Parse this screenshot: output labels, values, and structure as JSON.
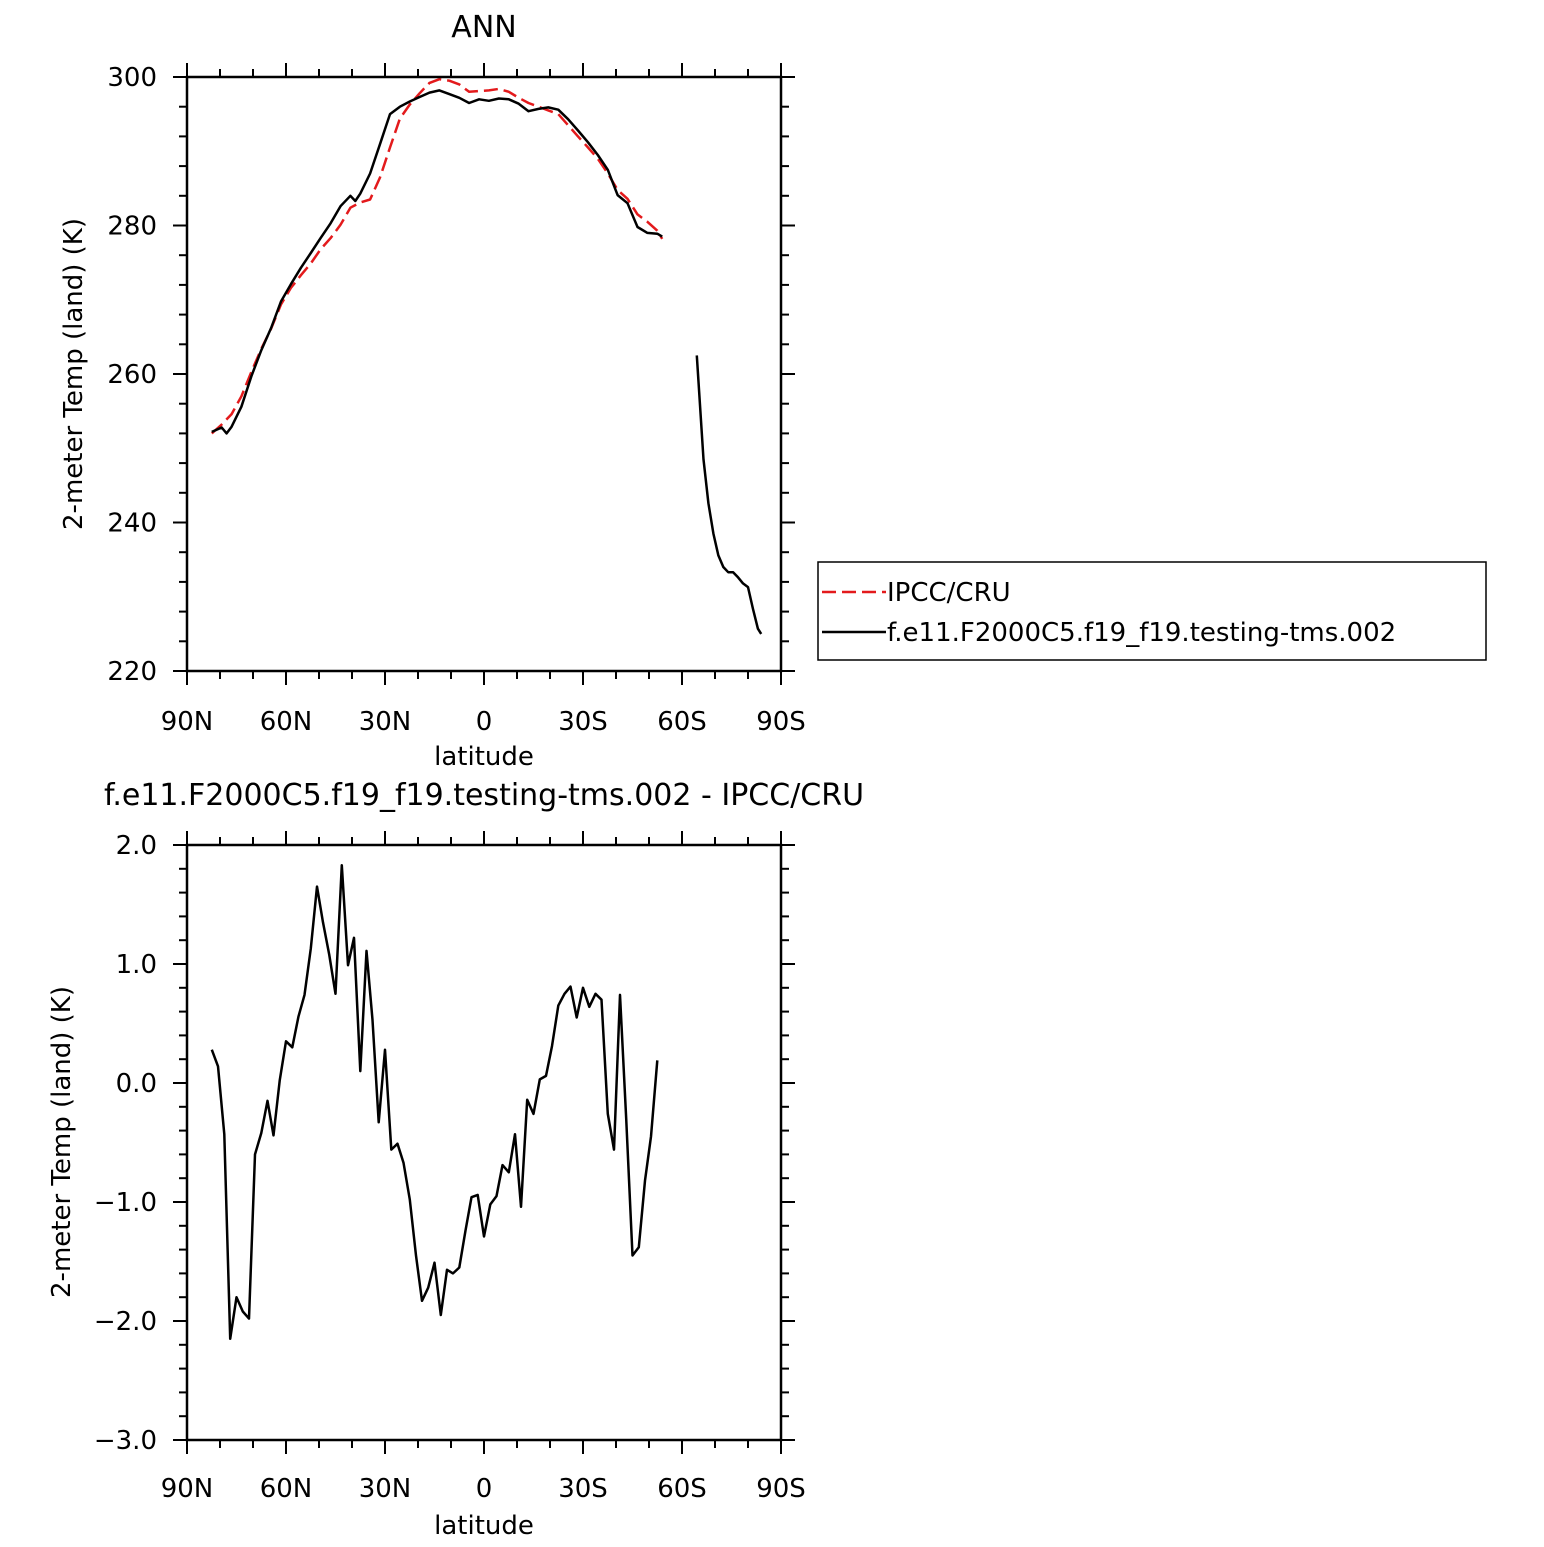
{
  "chart_data": [
    {
      "type": "line",
      "title": "ANN",
      "xlabel": "latitude",
      "ylabel": "2-meter Temp (land) (K)",
      "xlim": [
        90,
        -90
      ],
      "ylim": [
        220,
        300
      ],
      "xtick_values": [
        90,
        60,
        30,
        0,
        -30,
        -60,
        -90
      ],
      "xtick_labels": [
        "90N",
        "60N",
        "30N",
        "0",
        "30S",
        "60S",
        "90S"
      ],
      "ytick_values": [
        220,
        240,
        260,
        280,
        300
      ],
      "ytick_labels": [
        "220",
        "240",
        "260",
        "280",
        "300"
      ],
      "legend_position": "right",
      "series": [
        {
          "name": "IPCC/CRU",
          "color": "#e31a1c",
          "dash": "dashed",
          "segments": [
            [
              [
                82.5,
                252.0
              ],
              [
                79.5,
                253.2
              ],
              [
                76.5,
                254.6
              ],
              [
                73.5,
                257.0
              ],
              [
                70.5,
                260.3
              ],
              [
                67.5,
                263.4
              ],
              [
                64.5,
                266.1
              ],
              [
                61.5,
                269.4
              ],
              [
                58.5,
                271.6
              ],
              [
                55.5,
                273.3
              ],
              [
                52.5,
                274.9
              ],
              [
                49.5,
                276.8
              ],
              [
                46.5,
                278.3
              ],
              [
                43.5,
                280.1
              ],
              [
                40.5,
                282.4
              ],
              [
                37.5,
                283.1
              ],
              [
                34.5,
                283.5
              ],
              [
                31.5,
                286.5
              ],
              [
                28.5,
                290.5
              ],
              [
                25.5,
                294.4
              ],
              [
                22.5,
                296.3
              ],
              [
                19.5,
                297.8
              ],
              [
                16.5,
                299.2
              ],
              [
                13.5,
                299.7
              ],
              [
                10.5,
                299.5
              ],
              [
                7.5,
                299.0
              ],
              [
                4.5,
                298.0
              ],
              [
                1.5,
                298.1
              ],
              [
                -1.5,
                298.2
              ],
              [
                -4.5,
                298.4
              ],
              [
                -7.5,
                298.0
              ],
              [
                -10.5,
                297.2
              ],
              [
                -13.5,
                296.5
              ],
              [
                -16.5,
                296.0
              ],
              [
                -19.5,
                295.5
              ],
              [
                -22.5,
                295.0
              ],
              [
                -25.5,
                293.5
              ],
              [
                -28.5,
                292.0
              ],
              [
                -31.5,
                290.5
              ],
              [
                -34.5,
                289.0
              ],
              [
                -37.5,
                287.0
              ],
              [
                -40.5,
                284.8
              ],
              [
                -43.5,
                283.6
              ],
              [
                -46.5,
                281.5
              ],
              [
                -49.5,
                280.5
              ],
              [
                -52.5,
                279.3
              ],
              [
                -54.0,
                278.2
              ]
            ]
          ]
        },
        {
          "name": "f.e11.F2000C5.f19_f19.testing-tms.002",
          "color": "#000000",
          "dash": "solid",
          "segments": [
            [
              [
                82.5,
                252.2
              ],
              [
                79.5,
                252.8
              ],
              [
                78.0,
                252.0
              ],
              [
                76.5,
                252.9
              ],
              [
                73.5,
                255.6
              ],
              [
                70.5,
                259.7
              ],
              [
                67.5,
                263.2
              ],
              [
                64.5,
                266.2
              ],
              [
                61.5,
                269.8
              ],
              [
                58.5,
                272.1
              ],
              [
                55.5,
                274.3
              ],
              [
                52.5,
                276.3
              ],
              [
                49.5,
                278.3
              ],
              [
                46.5,
                280.3
              ],
              [
                43.5,
                282.6
              ],
              [
                40.5,
                284.0
              ],
              [
                39.0,
                283.3
              ],
              [
                37.5,
                284.3
              ],
              [
                34.5,
                287.0
              ],
              [
                31.5,
                291.0
              ],
              [
                28.5,
                295.0
              ],
              [
                25.5,
                296.0
              ],
              [
                22.5,
                296.7
              ],
              [
                19.5,
                297.3
              ],
              [
                16.5,
                297.9
              ],
              [
                13.5,
                298.2
              ],
              [
                10.5,
                297.7
              ],
              [
                7.5,
                297.2
              ],
              [
                4.5,
                296.5
              ],
              [
                1.5,
                297.0
              ],
              [
                -1.5,
                296.8
              ],
              [
                -4.5,
                297.1
              ],
              [
                -7.5,
                297.0
              ],
              [
                -10.5,
                296.4
              ],
              [
                -13.5,
                295.4
              ],
              [
                -16.5,
                295.7
              ],
              [
                -19.5,
                295.9
              ],
              [
                -22.5,
                295.6
              ],
              [
                -25.5,
                294.3
              ],
              [
                -28.5,
                292.8
              ],
              [
                -31.5,
                291.2
              ],
              [
                -34.5,
                289.5
              ],
              [
                -37.5,
                287.5
              ],
              [
                -40.5,
                284.1
              ],
              [
                -43.5,
                283.0
              ],
              [
                -46.5,
                279.8
              ],
              [
                -49.5,
                279.0
              ],
              [
                -52.5,
                278.9
              ],
              [
                -54.0,
                278.5
              ]
            ],
            [
              [
                -64.5,
                262.5
              ],
              [
                -66.5,
                248.5
              ],
              [
                -68.0,
                242.6
              ],
              [
                -69.5,
                238.5
              ],
              [
                -71.0,
                235.6
              ],
              [
                -72.5,
                234.0
              ],
              [
                -74.0,
                233.3
              ],
              [
                -75.5,
                233.3
              ],
              [
                -77.0,
                232.6
              ],
              [
                -78.5,
                231.8
              ],
              [
                -80.0,
                231.3
              ],
              [
                -81.5,
                228.4
              ],
              [
                -83.0,
                225.7
              ],
              [
                -84.0,
                225.0
              ]
            ]
          ]
        }
      ]
    },
    {
      "type": "line",
      "title": "f.e11.F2000C5.f19_f19.testing-tms.002 - IPCC/CRU",
      "xlabel": "latitude",
      "ylabel": "2-meter Temp (land) (K)",
      "xlim": [
        90,
        -90
      ],
      "ylim": [
        -3.0,
        2.0
      ],
      "xtick_values": [
        90,
        60,
        30,
        0,
        -30,
        -60,
        -90
      ],
      "xtick_labels": [
        "90N",
        "60N",
        "30N",
        "0",
        "30S",
        "60S",
        "90S"
      ],
      "ytick_values": [
        -3.0,
        -2.0,
        -1.0,
        0.0,
        1.0,
        2.0
      ],
      "ytick_labels": [
        "−3.0",
        "−2.0",
        "−1.0",
        "0.0",
        "1.0",
        "2.0"
      ],
      "series": [
        {
          "color": "#000000",
          "dash": "solid",
          "segments": [
            [
              [
                82.5,
                0.28
              ],
              [
                80.6,
                0.14
              ],
              [
                78.7,
                -0.43
              ],
              [
                76.9,
                -2.15
              ],
              [
                75.0,
                -1.8
              ],
              [
                73.1,
                -1.92
              ],
              [
                71.2,
                -1.98
              ],
              [
                69.4,
                -0.6
              ],
              [
                67.5,
                -0.42
              ],
              [
                65.6,
                -0.15
              ],
              [
                63.8,
                -0.44
              ],
              [
                61.9,
                0.02
              ],
              [
                60.0,
                0.35
              ],
              [
                58.1,
                0.3
              ],
              [
                56.2,
                0.56
              ],
              [
                54.4,
                0.74
              ],
              [
                52.5,
                1.13
              ],
              [
                50.6,
                1.65
              ],
              [
                48.8,
                1.35
              ],
              [
                46.9,
                1.08
              ],
              [
                45.0,
                0.75
              ],
              [
                43.1,
                1.83
              ],
              [
                41.2,
                0.99
              ],
              [
                39.4,
                1.22
              ],
              [
                37.5,
                0.1
              ],
              [
                35.6,
                1.11
              ],
              [
                33.8,
                0.53
              ],
              [
                31.9,
                -0.33
              ],
              [
                30.0,
                0.28
              ],
              [
                28.1,
                -0.56
              ],
              [
                26.2,
                -0.51
              ],
              [
                24.4,
                -0.67
              ],
              [
                22.5,
                -0.98
              ],
              [
                20.6,
                -1.45
              ],
              [
                18.8,
                -1.83
              ],
              [
                16.9,
                -1.72
              ],
              [
                15.0,
                -1.51
              ],
              [
                13.1,
                -1.95
              ],
              [
                11.2,
                -1.57
              ],
              [
                9.4,
                -1.6
              ],
              [
                7.5,
                -1.55
              ],
              [
                5.6,
                -1.24
              ],
              [
                3.8,
                -0.96
              ],
              [
                1.9,
                -0.94
              ],
              [
                0.0,
                -1.29
              ],
              [
                -1.9,
                -1.02
              ],
              [
                -3.8,
                -0.95
              ],
              [
                -5.6,
                -0.69
              ],
              [
                -7.5,
                -0.75
              ],
              [
                -9.4,
                -0.43
              ],
              [
                -11.2,
                -1.04
              ],
              [
                -13.1,
                -0.14
              ],
              [
                -15.0,
                -0.26
              ],
              [
                -16.9,
                0.03
              ],
              [
                -18.8,
                0.06
              ],
              [
                -20.6,
                0.31
              ],
              [
                -22.5,
                0.65
              ],
              [
                -24.4,
                0.75
              ],
              [
                -26.2,
                0.81
              ],
              [
                -28.1,
                0.55
              ],
              [
                -30.0,
                0.8
              ],
              [
                -31.9,
                0.64
              ],
              [
                -33.8,
                0.75
              ],
              [
                -35.6,
                0.7
              ],
              [
                -37.5,
                -0.26
              ],
              [
                -39.4,
                -0.56
              ],
              [
                -41.2,
                0.74
              ],
              [
                -43.1,
                -0.3
              ],
              [
                -45.0,
                -1.45
              ],
              [
                -46.9,
                -1.38
              ],
              [
                -48.8,
                -0.82
              ],
              [
                -50.6,
                -0.45
              ],
              [
                -52.5,
                0.19
              ]
            ]
          ]
        }
      ]
    }
  ]
}
